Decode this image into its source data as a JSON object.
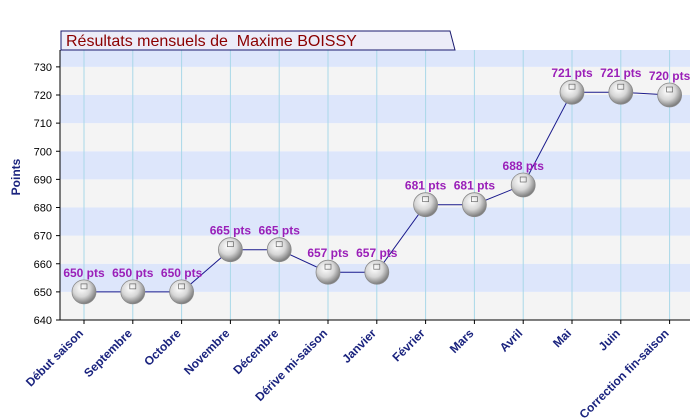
{
  "chart_data": {
    "type": "line",
    "title": "Résultats mensuels de  Maxime BOISSY",
    "ylabel": "Points",
    "xlabel": "",
    "ylim": [
      640,
      736
    ],
    "yticks": [
      640,
      650,
      660,
      670,
      680,
      690,
      700,
      710,
      720,
      730
    ],
    "categories": [
      "Début saison",
      "Septembre",
      "Octobre",
      "Novembre",
      "Décembre",
      "Dérive mi-saison",
      "Janvier",
      "Février",
      "Mars",
      "Avril",
      "Mai",
      "Juin",
      "Correction fin-saison"
    ],
    "values": [
      650,
      650,
      650,
      665,
      665,
      657,
      657,
      681,
      681,
      688,
      721,
      721,
      720
    ],
    "data_labels": [
      "650 pts",
      "650 pts",
      "650 pts",
      "665 pts",
      "665 pts",
      "657 pts",
      "657 pts",
      "681 pts",
      "681 pts",
      "688 pts",
      "721 pts",
      "721 pts",
      "720 pts"
    ],
    "grid": true,
    "colors": {
      "band_blue": "#dde6fb",
      "band_grey": "#f4f4f4",
      "line": "#1a1a8c",
      "label": "#9a1fb8",
      "axis_text": "#1a237e",
      "title_text": "#8b0000",
      "title_box": "#ececf8"
    }
  }
}
